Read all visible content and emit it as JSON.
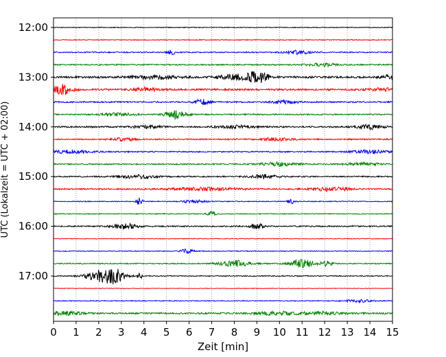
{
  "chart_data": {
    "type": "line",
    "title": "",
    "xlabel": "Zeit  [min]",
    "ylabel": "UTC (Lokalzeit = UTC + 02:00)",
    "xlim": [
      0,
      15
    ],
    "x_ticks": [
      "0",
      "1",
      "2",
      "3",
      "4",
      "5",
      "6",
      "7",
      "8",
      "9",
      "10",
      "11",
      "12",
      "13",
      "14",
      "15"
    ],
    "y_ticks": [
      "12:00",
      "13:00",
      "14:00",
      "15:00",
      "16:00",
      "17:00"
    ],
    "grid": "vertical-dotted",
    "row_colors": [
      "#000000",
      "#ff0000",
      "#0000ff",
      "#008000"
    ],
    "rows": [
      {
        "time": "12:00",
        "color_index": 0,
        "base_amp": 0.5,
        "events": []
      },
      {
        "time": "12:15",
        "color_index": 1,
        "base_amp": 0.6,
        "events": []
      },
      {
        "time": "12:30",
        "color_index": 2,
        "base_amp": 0.8,
        "events": [
          [
            5.2,
            0.15,
            3
          ],
          [
            10.8,
            0.4,
            2.5
          ]
        ]
      },
      {
        "time": "12:45",
        "color_index": 3,
        "base_amp": 0.9,
        "events": [
          [
            11.9,
            0.5,
            2
          ]
        ]
      },
      {
        "time": "13:00",
        "color_index": 0,
        "base_amp": 1.4,
        "events": [
          [
            4.5,
            0.8,
            2.5
          ],
          [
            8.0,
            0.5,
            3.5
          ],
          [
            9.0,
            0.35,
            8
          ],
          [
            14.9,
            0.3,
            3
          ]
        ]
      },
      {
        "time": "13:15",
        "color_index": 1,
        "base_amp": 1.3,
        "events": [
          [
            0.4,
            0.3,
            7
          ],
          [
            4.1,
            0.4,
            2.5
          ],
          [
            14.6,
            0.4,
            2
          ]
        ]
      },
      {
        "time": "13:30",
        "color_index": 2,
        "base_amp": 1.0,
        "events": [
          [
            6.6,
            0.25,
            4
          ],
          [
            10.2,
            0.4,
            2
          ]
        ]
      },
      {
        "time": "13:45",
        "color_index": 3,
        "base_amp": 0.9,
        "events": [
          [
            5.4,
            0.35,
            6
          ],
          [
            2.8,
            0.5,
            2
          ]
        ]
      },
      {
        "time": "14:00",
        "color_index": 0,
        "base_amp": 1.1,
        "events": [
          [
            4.1,
            0.4,
            2
          ],
          [
            8.0,
            0.6,
            2
          ],
          [
            14.0,
            0.4,
            3
          ]
        ]
      },
      {
        "time": "14:15",
        "color_index": 1,
        "base_amp": 0.9,
        "events": [
          [
            3.1,
            0.4,
            2
          ],
          [
            9.8,
            0.5,
            2
          ]
        ]
      },
      {
        "time": "14:30",
        "color_index": 2,
        "base_amp": 0.9,
        "events": [
          [
            0.8,
            0.6,
            2.5
          ],
          [
            14.0,
            0.6,
            2
          ]
        ]
      },
      {
        "time": "14:45",
        "color_index": 3,
        "base_amp": 0.9,
        "events": [
          [
            10.0,
            0.6,
            2.5
          ],
          [
            13.7,
            0.5,
            2
          ]
        ]
      },
      {
        "time": "15:00",
        "color_index": 0,
        "base_amp": 0.9,
        "events": [
          [
            3.7,
            0.6,
            2.5
          ],
          [
            9.3,
            0.4,
            3
          ]
        ]
      },
      {
        "time": "15:15",
        "color_index": 1,
        "base_amp": 1.0,
        "events": [
          [
            6.6,
            1.0,
            2
          ],
          [
            12.3,
            0.5,
            3.5
          ]
        ]
      },
      {
        "time": "15:30",
        "color_index": 2,
        "base_amp": 0.6,
        "events": [
          [
            3.8,
            0.1,
            5
          ],
          [
            6.2,
            0.4,
            2
          ],
          [
            10.5,
            0.1,
            4
          ]
        ]
      },
      {
        "time": "15:45",
        "color_index": 3,
        "base_amp": 0.6,
        "events": [
          [
            7.0,
            0.15,
            3
          ]
        ]
      },
      {
        "time": "16:00",
        "color_index": 0,
        "base_amp": 0.9,
        "events": [
          [
            3.2,
            0.4,
            4
          ],
          [
            9.0,
            0.2,
            4
          ]
        ]
      },
      {
        "time": "16:15",
        "color_index": 1,
        "base_amp": 0.5,
        "events": []
      },
      {
        "time": "16:30",
        "color_index": 2,
        "base_amp": 0.6,
        "events": [
          [
            5.9,
            0.2,
            3
          ]
        ]
      },
      {
        "time": "16:45",
        "color_index": 3,
        "base_amp": 0.8,
        "events": [
          [
            8.0,
            0.45,
            5
          ],
          [
            11.0,
            0.4,
            6
          ],
          [
            12.1,
            0.15,
            4
          ]
        ]
      },
      {
        "time": "17:00",
        "color_index": 0,
        "base_amp": 0.7,
        "events": [
          [
            2.1,
            0.45,
            9
          ],
          [
            2.8,
            0.3,
            8
          ],
          [
            3.8,
            0.1,
            4
          ]
        ]
      },
      {
        "time": "17:15",
        "color_index": 1,
        "base_amp": 0.4,
        "events": []
      },
      {
        "time": "17:30",
        "color_index": 2,
        "base_amp": 0.6,
        "events": [
          [
            13.5,
            0.4,
            2
          ]
        ]
      },
      {
        "time": "17:45",
        "color_index": 3,
        "base_amp": 1.2,
        "events": [
          [
            0.5,
            0.5,
            2.5
          ],
          [
            9.8,
            0.6,
            2.5
          ],
          [
            11.8,
            0.6,
            2
          ]
        ]
      }
    ]
  }
}
